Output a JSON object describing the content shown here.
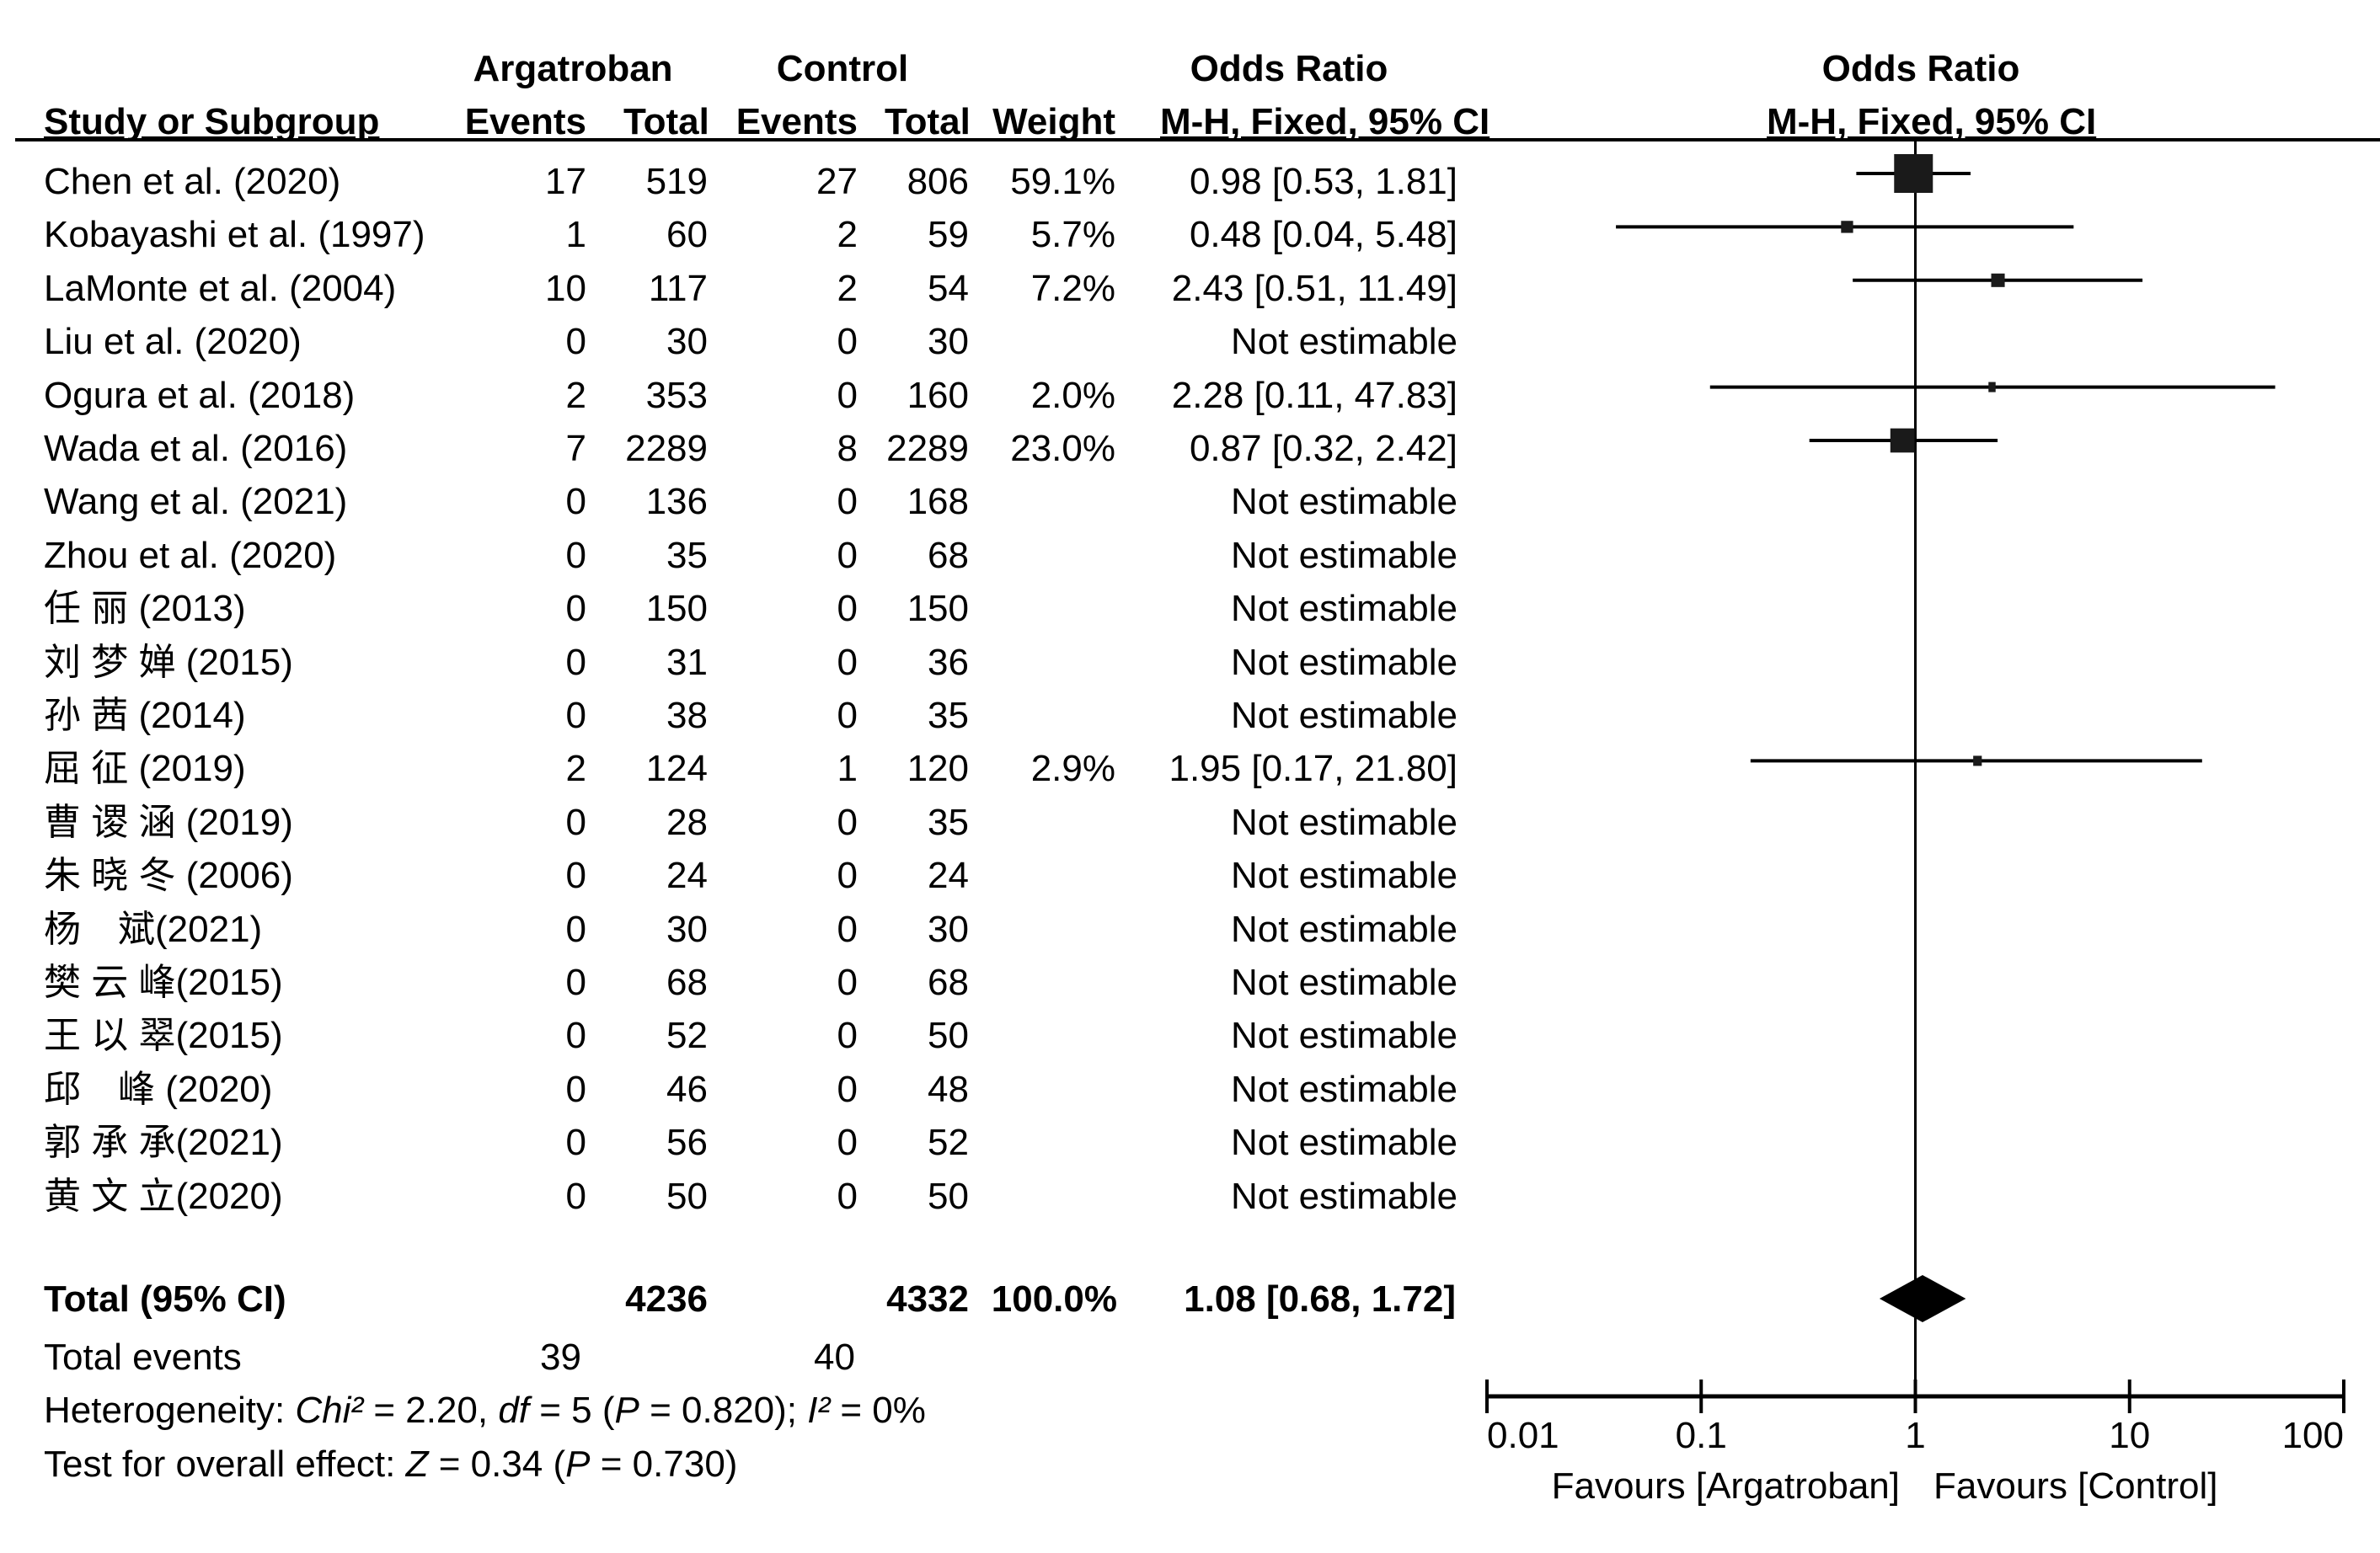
{
  "chart_data": {
    "type": "forest",
    "title": "Odds Ratio",
    "method": "M-H, Fixed, 95% CI",
    "scale": "log",
    "xlim": [
      0.01,
      100
    ],
    "x_ticks": [
      "0.01",
      "0.1",
      "1",
      "10",
      "100"
    ],
    "x_tick_values": [
      0.01,
      0.1,
      1,
      10,
      100
    ],
    "reference_line": 1,
    "favours_left": "Favours [Argatroban]",
    "favours_right": "Favours [Control]",
    "studies": [
      {
        "name": "Chen et al. (2020)",
        "ev_t": "17",
        "tot_t": "519",
        "ev_c": "27",
        "tot_c": "806",
        "weight": "59.1%",
        "or_text": "0.98 [0.53, 1.81]",
        "or": 0.98,
        "lo": 0.53,
        "hi": 1.81,
        "w": 59.1
      },
      {
        "name": "Kobayashi et al. (1997)",
        "ev_t": "1",
        "tot_t": "60",
        "ev_c": "2",
        "tot_c": "59",
        "weight": "5.7%",
        "or_text": "0.48 [0.04, 5.48]",
        "or": 0.48,
        "lo": 0.04,
        "hi": 5.48,
        "w": 5.7
      },
      {
        "name": "LaMonte et al. (2004)",
        "ev_t": "10",
        "tot_t": "117",
        "ev_c": "2",
        "tot_c": "54",
        "weight": "7.2%",
        "or_text": "2.43 [0.51, 11.49]",
        "or": 2.43,
        "lo": 0.51,
        "hi": 11.49,
        "w": 7.2
      },
      {
        "name": "Liu et al. (2020)",
        "ev_t": "0",
        "tot_t": "30",
        "ev_c": "0",
        "tot_c": "30",
        "weight": "",
        "or_text": "Not estimable",
        "or": null,
        "lo": null,
        "hi": null,
        "w": null
      },
      {
        "name": "Ogura et al. (2018)",
        "ev_t": "2",
        "tot_t": "353",
        "ev_c": "0",
        "tot_c": "160",
        "weight": "2.0%",
        "or_text": "2.28 [0.11, 47.83]",
        "or": 2.28,
        "lo": 0.11,
        "hi": 47.83,
        "w": 2.0
      },
      {
        "name": "Wada et al. (2016)",
        "ev_t": "7",
        "tot_t": "2289",
        "ev_c": "8",
        "tot_c": "2289",
        "weight": "23.0%",
        "or_text": "0.87 [0.32, 2.42]",
        "or": 0.87,
        "lo": 0.32,
        "hi": 2.42,
        "w": 23.0
      },
      {
        "name": "Wang et al. (2021)",
        "ev_t": "0",
        "tot_t": "136",
        "ev_c": "0",
        "tot_c": "168",
        "weight": "",
        "or_text": "Not estimable",
        "or": null,
        "lo": null,
        "hi": null,
        "w": null
      },
      {
        "name": "Zhou et al. (2020)",
        "ev_t": "0",
        "tot_t": "35",
        "ev_c": "0",
        "tot_c": "68",
        "weight": "",
        "or_text": "Not estimable",
        "or": null,
        "lo": null,
        "hi": null,
        "w": null
      },
      {
        "name": "任 丽 (2013)",
        "ev_t": "0",
        "tot_t": "150",
        "ev_c": "0",
        "tot_c": "150",
        "weight": "",
        "or_text": "Not estimable",
        "or": null,
        "lo": null,
        "hi": null,
        "w": null
      },
      {
        "name": "刘 梦 婵 (2015)",
        "ev_t": "0",
        "tot_t": "31",
        "ev_c": "0",
        "tot_c": "36",
        "weight": "",
        "or_text": "Not estimable",
        "or": null,
        "lo": null,
        "hi": null,
        "w": null
      },
      {
        "name": "孙 茜 (2014)",
        "ev_t": "0",
        "tot_t": "38",
        "ev_c": "0",
        "tot_c": "35",
        "weight": "",
        "or_text": "Not estimable",
        "or": null,
        "lo": null,
        "hi": null,
        "w": null
      },
      {
        "name": "屈 征 (2019)",
        "ev_t": "2",
        "tot_t": "124",
        "ev_c": "1",
        "tot_c": "120",
        "weight": "2.9%",
        "or_text": "1.95 [0.17, 21.80]",
        "or": 1.95,
        "lo": 0.17,
        "hi": 21.8,
        "w": 2.9
      },
      {
        "name": "曹 谡 涵 (2019)",
        "ev_t": "0",
        "tot_t": "28",
        "ev_c": "0",
        "tot_c": "35",
        "weight": "",
        "or_text": "Not estimable",
        "or": null,
        "lo": null,
        "hi": null,
        "w": null
      },
      {
        "name": "朱 晓 冬 (2006)",
        "ev_t": "0",
        "tot_t": "24",
        "ev_c": "0",
        "tot_c": "24",
        "weight": "",
        "or_text": "Not estimable",
        "or": null,
        "lo": null,
        "hi": null,
        "w": null
      },
      {
        "name": "杨　斌(2021)",
        "ev_t": "0",
        "tot_t": "30",
        "ev_c": "0",
        "tot_c": "30",
        "weight": "",
        "or_text": "Not estimable",
        "or": null,
        "lo": null,
        "hi": null,
        "w": null
      },
      {
        "name": "樊 云 峰(2015)",
        "ev_t": "0",
        "tot_t": "68",
        "ev_c": "0",
        "tot_c": "68",
        "weight": "",
        "or_text": "Not estimable",
        "or": null,
        "lo": null,
        "hi": null,
        "w": null
      },
      {
        "name": "王 以 翠(2015)",
        "ev_t": "0",
        "tot_t": "52",
        "ev_c": "0",
        "tot_c": "50",
        "weight": "",
        "or_text": "Not estimable",
        "or": null,
        "lo": null,
        "hi": null,
        "w": null
      },
      {
        "name": "邱　峰 (2020)",
        "ev_t": "0",
        "tot_t": "46",
        "ev_c": "0",
        "tot_c": "48",
        "weight": "",
        "or_text": "Not estimable",
        "or": null,
        "lo": null,
        "hi": null,
        "w": null
      },
      {
        "name": "郭 承 承(2021)",
        "ev_t": "0",
        "tot_t": "56",
        "ev_c": "0",
        "tot_c": "52",
        "weight": "",
        "or_text": "Not estimable",
        "or": null,
        "lo": null,
        "hi": null,
        "w": null
      },
      {
        "name": "黄 文 立(2020)",
        "ev_t": "0",
        "tot_t": "50",
        "ev_c": "0",
        "tot_c": "50",
        "weight": "",
        "or_text": "Not estimable",
        "or": null,
        "lo": null,
        "hi": null,
        "w": null
      }
    ],
    "total": {
      "label": "Total (95% CI)",
      "tot_t": "4236",
      "tot_c": "4332",
      "weight": "100.0%",
      "or_text": "1.08 [0.68, 1.72]",
      "or": 1.08,
      "lo": 0.68,
      "hi": 1.72
    },
    "total_events": {
      "label": "Total events",
      "ev_t": "39",
      "ev_c": "40"
    },
    "heterogeneity": {
      "prefix": "Heterogeneity: ",
      "chi_label": "Chi²",
      "chi_value": " = 2.20, ",
      "df_label": "df",
      "df_value": " = 5 (",
      "p_label": "P",
      "p_value": " = 0.820); ",
      "i_label": "I²",
      "i_value": " = 0%"
    },
    "overall_effect": {
      "prefix": "Test for overall effect: ",
      "z_label": "Z",
      "z_value": " = 0.34 (",
      "p_label": "P",
      "p_value": " = 0.730)"
    }
  },
  "headers": {
    "group_treatment": "Argatroban",
    "group_control": "Control",
    "or_group": "Odds Ratio",
    "or_plot_group": "Odds Ratio",
    "study": "Study or Subgroup",
    "events_t": "Events",
    "total_t": "Total",
    "events_c": "Events",
    "total_c": "Total",
    "weight": "Weight",
    "or_method": "M-H, Fixed, 95% CI",
    "plot_method": "M-H, Fixed, 95% CI"
  }
}
